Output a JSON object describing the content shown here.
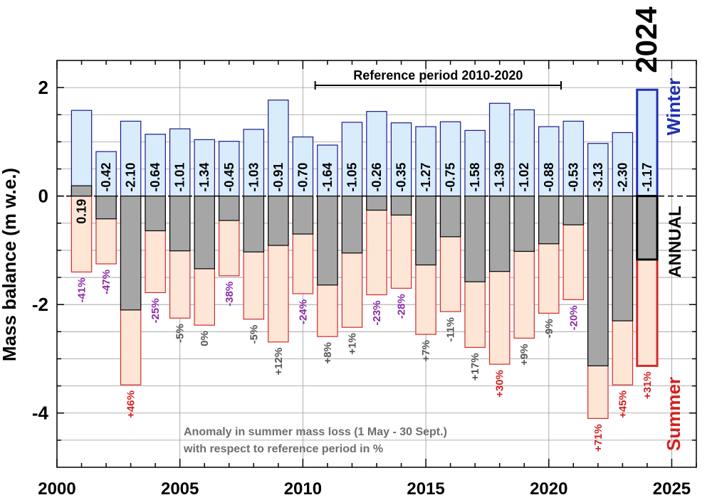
{
  "chart_data": {
    "type": "bar",
    "title": "",
    "xlabel": "",
    "ylabel": "Mass balance (m w.e.)",
    "xlim": [
      2000,
      2026
    ],
    "ylim": [
      -5,
      2.5
    ],
    "x_ticks": [
      "2000",
      "2005",
      "2010",
      "2015",
      "2020",
      "2025"
    ],
    "y_ticks": [
      {
        "value": 2,
        "label": "2"
      },
      {
        "value": 0,
        "label": "0"
      },
      {
        "value": -2,
        "label": "-2"
      },
      {
        "value": -4,
        "label": "-4"
      }
    ],
    "categories": [
      "2001",
      "2002",
      "2003",
      "2004",
      "2005",
      "2006",
      "2007",
      "2008",
      "2009",
      "2010",
      "2011",
      "2012",
      "2013",
      "2014",
      "2015",
      "2016",
      "2017",
      "2018",
      "2019",
      "2020",
      "2021",
      "2022",
      "2023",
      "2024"
    ],
    "series": [
      {
        "name": "Winter",
        "values": [
          1.58,
          0.82,
          1.38,
          1.14,
          1.24,
          1.04,
          1.01,
          1.23,
          1.77,
          1.09,
          0.94,
          1.36,
          1.56,
          1.35,
          1.28,
          1.37,
          1.21,
          1.71,
          1.59,
          1.28,
          1.38,
          0.97,
          1.17,
          1.96
        ]
      },
      {
        "name": "Summer",
        "values": [
          -1.4,
          -1.25,
          -3.48,
          -1.78,
          -2.25,
          -2.38,
          -1.47,
          -2.27,
          -2.69,
          -1.8,
          -2.59,
          -2.42,
          -1.82,
          -1.7,
          -2.55,
          -2.13,
          -2.79,
          -3.1,
          -2.62,
          -2.16,
          -1.91,
          -4.1,
          -3.48,
          -3.13
        ]
      },
      {
        "name": "ANNUAL",
        "values": [
          0.19,
          -0.42,
          -2.1,
          -0.64,
          -1.01,
          -1.34,
          -0.45,
          -1.03,
          -0.91,
          -0.7,
          -1.64,
          -1.05,
          -0.26,
          -0.35,
          -1.27,
          -0.75,
          -1.58,
          -1.39,
          -1.02,
          -0.88,
          -0.53,
          -3.13,
          -2.3,
          -1.17
        ]
      }
    ],
    "annual_labels": [
      "0.19",
      "-0.42",
      "-2.10",
      "-0.64",
      "-1.01",
      "-1.34",
      "-0.45",
      "-1.03",
      "-0.91",
      "-0.70",
      "-1.64",
      "-1.05",
      "-0.26",
      "-0.35",
      "-1.27",
      "-0.75",
      "-1.58",
      "-1.39",
      "-1.02",
      "-0.88",
      "-0.53",
      "-3.13",
      "-2.30",
      "-1.17"
    ],
    "anomaly_labels": [
      "-41%",
      "-47%",
      "+46%",
      "-25%",
      "-5%",
      "0%",
      "-38%",
      "-5%",
      "+12%",
      "-24%",
      "+8%",
      "+1%",
      "-23%",
      "-28%",
      "+7%",
      "-11%",
      "+17%",
      "+30%",
      "+9%",
      "-9%",
      "-20%",
      "+71%",
      "+45%",
      "+31%"
    ],
    "anomaly_categories": [
      "low",
      "low",
      "high",
      "low",
      "neutral",
      "neutral",
      "low",
      "neutral",
      "neutral",
      "low",
      "neutral",
      "neutral",
      "low",
      "low",
      "neutral",
      "neutral",
      "neutral",
      "high",
      "neutral",
      "neutral",
      "low",
      "high",
      "high",
      "high"
    ],
    "highlight_year": "2024",
    "legend": {
      "winter": "Winter",
      "annual": "ANNUAL",
      "summer": "Summer"
    },
    "reference_period": {
      "label": "Reference period 2010-2020",
      "start": 2010.5,
      "end": 2020.5
    },
    "annotation": {
      "line1": "Anomaly in summer mass loss (1 May - 30 Sept.)",
      "line2": "with respect to reference period in %"
    },
    "colors": {
      "winter_fill": "#d8ecfc",
      "winter_edge": "#1a1a8c",
      "summer_fill": "#fde6d6",
      "summer_edge": "#d42a2a",
      "annual_fill": "#a6a6a6",
      "annual_edge": "#000000",
      "highlight_winter_edge": "#1f2fb3",
      "label_low": "#8a2ba8",
      "label_neutral": "#555555",
      "label_high": "#d42020",
      "legend_winter": "#1f2fb3",
      "legend_summer": "#d42020",
      "annotation_text": "#6e6e6e",
      "grid": "#9a9a9a"
    }
  }
}
